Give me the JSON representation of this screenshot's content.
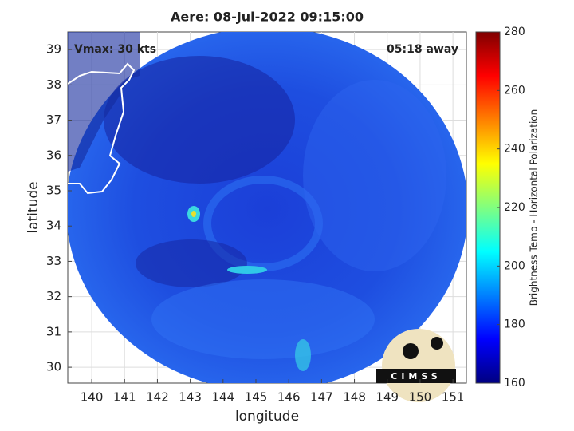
{
  "chart_data": {
    "type": "map",
    "title": "Aere: 08-Jul-2022 09:15:00",
    "annotations": [
      "Vmax: 30 kts",
      "05:18 away"
    ],
    "xlabel": "longitude",
    "ylabel": "latitude",
    "xlim": [
      139.27,
      151.41
    ],
    "ylim": [
      29.55,
      39.5
    ],
    "xticks": [
      140,
      141,
      142,
      143,
      144,
      145,
      146,
      147,
      148,
      149,
      150,
      151
    ],
    "yticks": [
      30,
      31,
      32,
      33,
      34,
      35,
      36,
      37,
      38,
      39
    ],
    "grid": true,
    "colorbar": {
      "label": "Brightness Temp - Horizontal Polarization",
      "colormap": "jet",
      "lim": [
        160,
        280
      ],
      "ticks": [
        160,
        180,
        200,
        220,
        240,
        260,
        280
      ]
    }
  },
  "logo": "CIMSS"
}
